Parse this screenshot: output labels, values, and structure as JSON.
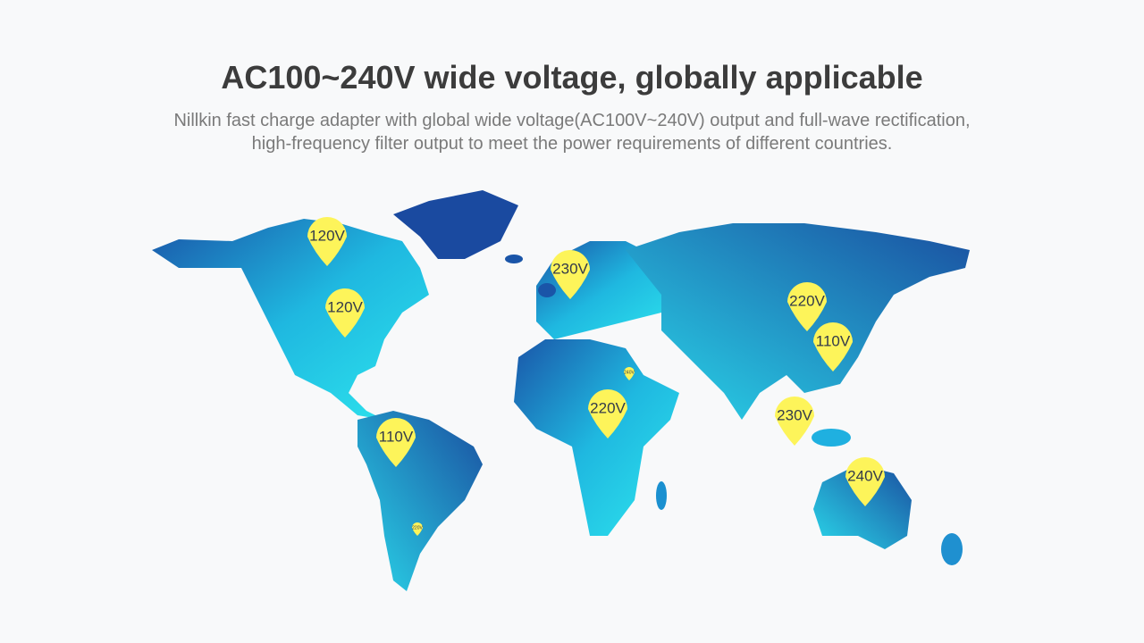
{
  "header": {
    "title": "AC100~240V wide voltage, globally applicable",
    "subtitle": [
      "Nillkin fast charge adapter with global wide voltage(AC100V~240V) output and full-wave rectification,",
      "high-frequency filter output to meet the power requirements of different countries."
    ]
  },
  "pins": [
    {
      "label": "120V"
    },
    {
      "label": "120V"
    },
    {
      "label": "230V"
    },
    {
      "label": "220V"
    },
    {
      "label": "110V"
    },
    {
      "label": "220V"
    },
    {
      "label": "230V"
    },
    {
      "label": "110V"
    },
    {
      "label": "240V"
    },
    {
      "label": "240V"
    },
    {
      "label": "220V"
    }
  ]
}
